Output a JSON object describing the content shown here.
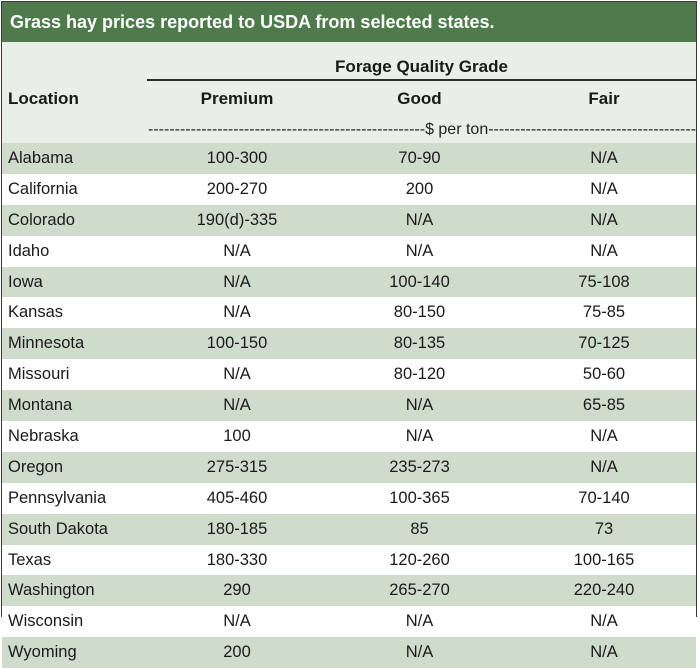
{
  "chart_data": {
    "type": "table",
    "title": "Grass hay prices reported to USDA from selected states.",
    "group_header": "Forage Quality Grade",
    "row_header": "Location",
    "columns": [
      "Premium",
      "Good",
      "Fair"
    ],
    "unit_label": "$ per ton",
    "rows": [
      {
        "location": "Alabama",
        "premium": "100-300",
        "good": "70-90",
        "fair": "N/A"
      },
      {
        "location": "California",
        "premium": "200-270",
        "good": "200",
        "fair": "N/A"
      },
      {
        "location": "Colorado",
        "premium": "190(d)-335",
        "good": "N/A",
        "fair": "N/A"
      },
      {
        "location": "Idaho",
        "premium": "N/A",
        "good": "N/A",
        "fair": "N/A"
      },
      {
        "location": "Iowa",
        "premium": "N/A",
        "good": "100-140",
        "fair": "75-108"
      },
      {
        "location": "Kansas",
        "premium": "N/A",
        "good": "80-150",
        "fair": "75-85"
      },
      {
        "location": "Minnesota",
        "premium": "100-150",
        "good": "80-135",
        "fair": "70-125"
      },
      {
        "location": "Missouri",
        "premium": "N/A",
        "good": "80-120",
        "fair": "50-60"
      },
      {
        "location": "Montana",
        "premium": "N/A",
        "good": "N/A",
        "fair": "65-85"
      },
      {
        "location": "Nebraska",
        "premium": "100",
        "good": "N/A",
        "fair": "N/A"
      },
      {
        "location": "Oregon",
        "premium": "275-315",
        "good": "235-273",
        "fair": "N/A"
      },
      {
        "location": "Pennsylvania",
        "premium": "405-460",
        "good": "100-365",
        "fair": "70-140"
      },
      {
        "location": "South Dakota",
        "premium": "180-185",
        "good": "85",
        "fair": "73"
      },
      {
        "location": "Texas",
        "premium": "180-330",
        "good": "120-260",
        "fair": "100-165"
      },
      {
        "location": "Washington",
        "premium": "290",
        "good": "265-270",
        "fair": "220-240"
      },
      {
        "location": "Wisconsin",
        "premium": "N/A",
        "good": "N/A",
        "fair": "N/A"
      },
      {
        "location": "Wyoming",
        "premium": "200",
        "good": "N/A",
        "fair": "N/A"
      }
    ]
  },
  "colors": {
    "title_bar": "#4f7a4c",
    "stripe": "#cfdccc",
    "header": "#e9efe6"
  }
}
